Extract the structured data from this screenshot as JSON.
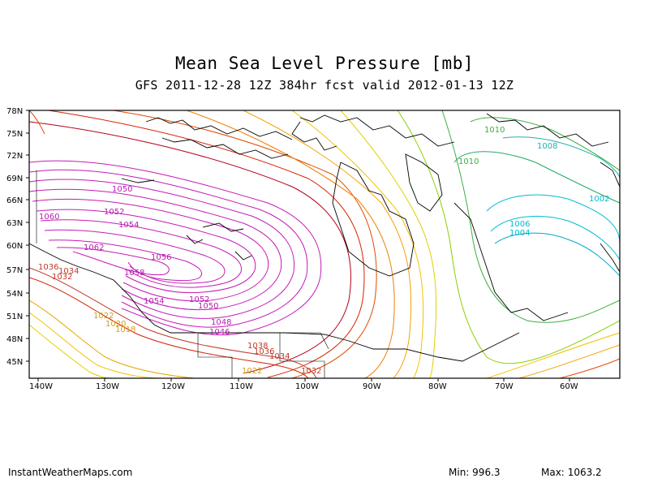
{
  "title": "Mean Sea Level Pressure [mb]",
  "subtitle": "GFS 2011-12-28 12Z 384hr fcst valid 2012-01-13 12Z",
  "lat_labels": [
    "78N",
    "75N",
    "72N",
    "69N",
    "66N",
    "63N",
    "60N",
    "57N",
    "54N",
    "51N",
    "48N",
    "45N"
  ],
  "lon_labels": [
    "140W",
    "130W",
    "120W",
    "110W",
    "100W",
    "90W",
    "80W",
    "70W",
    "60W"
  ],
  "contour_labels": [
    {
      "text": "1060",
      "color": "#b81eb0"
    },
    {
      "text": "1050",
      "color": "#b81eb0"
    },
    {
      "text": "1052",
      "color": "#b81eb0"
    },
    {
      "text": "1054",
      "color": "#b81eb0"
    },
    {
      "text": "1062",
      "color": "#b81eb0"
    },
    {
      "text": "1056",
      "color": "#b81eb0"
    },
    {
      "text": "1058",
      "color": "#b81eb0"
    },
    {
      "text": "1054",
      "color": "#b81eb0"
    },
    {
      "text": "1052",
      "color": "#b81eb0"
    },
    {
      "text": "1050",
      "color": "#b81eb0"
    },
    {
      "text": "1048",
      "color": "#b81eb0"
    },
    {
      "text": "1046",
      "color": "#b81eb0"
    },
    {
      "text": "1036",
      "color": "#c0392b"
    },
    {
      "text": "1034",
      "color": "#c0392b"
    },
    {
      "text": "1032",
      "color": "#c0392b"
    },
    {
      "text": "1022",
      "color": "#d4a017"
    },
    {
      "text": "1020",
      "color": "#d4a017"
    },
    {
      "text": "1018",
      "color": "#d4a017"
    },
    {
      "text": "1038",
      "color": "#c0392b"
    },
    {
      "text": "1036",
      "color": "#c0392b"
    },
    {
      "text": "1034",
      "color": "#c0392b"
    },
    {
      "text": "1032",
      "color": "#c0392b"
    },
    {
      "text": "1022",
      "color": "#d4a017"
    },
    {
      "text": "1010",
      "color": "#3cb043"
    },
    {
      "text": "1010",
      "color": "#3cb043"
    },
    {
      "text": "1008",
      "color": "#20b2aa"
    },
    {
      "text": "1002",
      "color": "#00bcd4"
    },
    {
      "text": "1006",
      "color": "#00bcd4"
    },
    {
      "text": "1004",
      "color": "#00bcd4"
    }
  ],
  "footer": {
    "site": "InstantWeatherMaps.com",
    "min_label": "Min:",
    "min_value": "996.3",
    "max_label": "Max:",
    "max_value": "1063.2"
  }
}
